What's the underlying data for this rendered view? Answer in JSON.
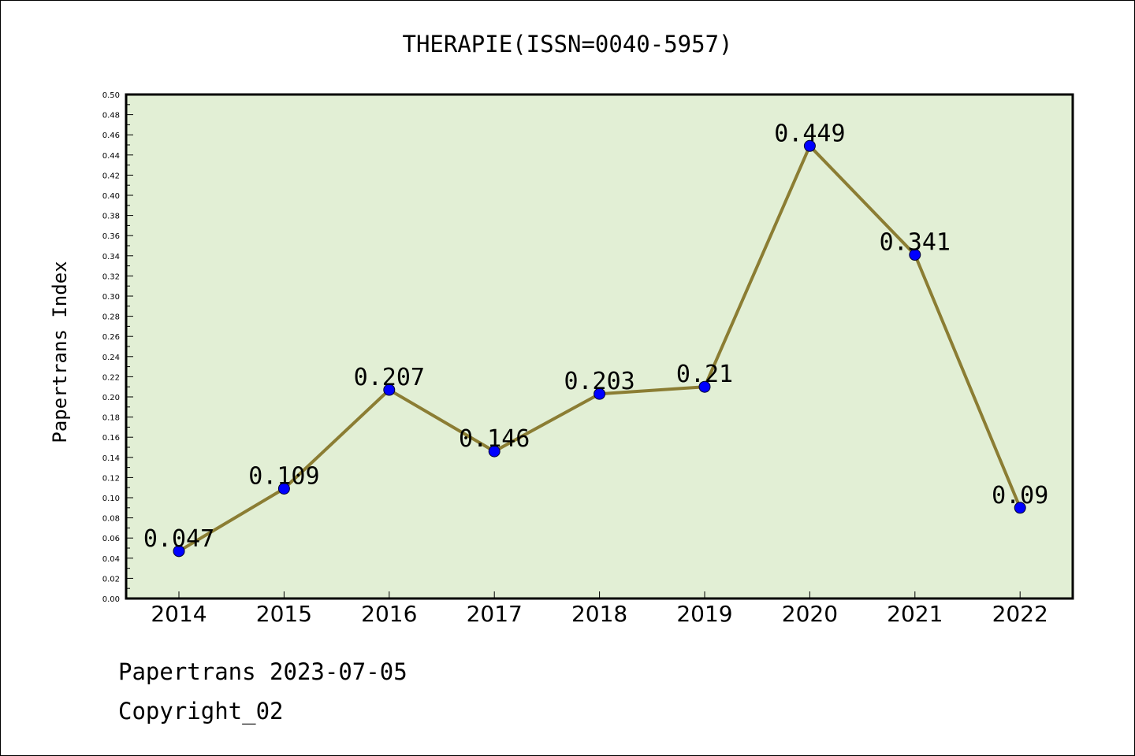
{
  "chart_data": {
    "type": "line",
    "title": "THERAPIE(ISSN=0040-5957)",
    "xlabel": "",
    "ylabel": "Papertrans Index",
    "categories": [
      "2014",
      "2015",
      "2016",
      "2017",
      "2018",
      "2019",
      "2020",
      "2021",
      "2022"
    ],
    "series": [
      {
        "values": [
          0.047,
          0.109,
          0.207,
          0.146,
          0.203,
          0.21,
          0.449,
          0.341,
          0.09
        ],
        "data_labels": [
          "0.047",
          "0.109",
          "0.207",
          "0.146",
          "0.203",
          "0.21",
          "0.449",
          "0.341",
          "0.09"
        ],
        "line_color": "#8b7d33",
        "marker_color": "#0000ff"
      }
    ],
    "ylim": [
      0,
      0.5
    ],
    "y_tick_step": 0.02,
    "y_tick_labels": [
      "0.00",
      "0.02",
      "0.04",
      "0.06",
      "0.08",
      "0.10",
      "0.12",
      "0.14",
      "0.16",
      "0.18",
      "0.20",
      "0.22",
      "0.24",
      "0.26",
      "0.28",
      "0.30",
      "0.32",
      "0.34",
      "0.36",
      "0.38",
      "0.40",
      "0.42",
      "0.44",
      "0.46",
      "0.48",
      "0.50"
    ],
    "plot_background": "#e2efd5",
    "grid": false,
    "legend": "none"
  },
  "footer": {
    "line1": "Papertrans 2023-07-05",
    "line2": "Copyright_02"
  }
}
